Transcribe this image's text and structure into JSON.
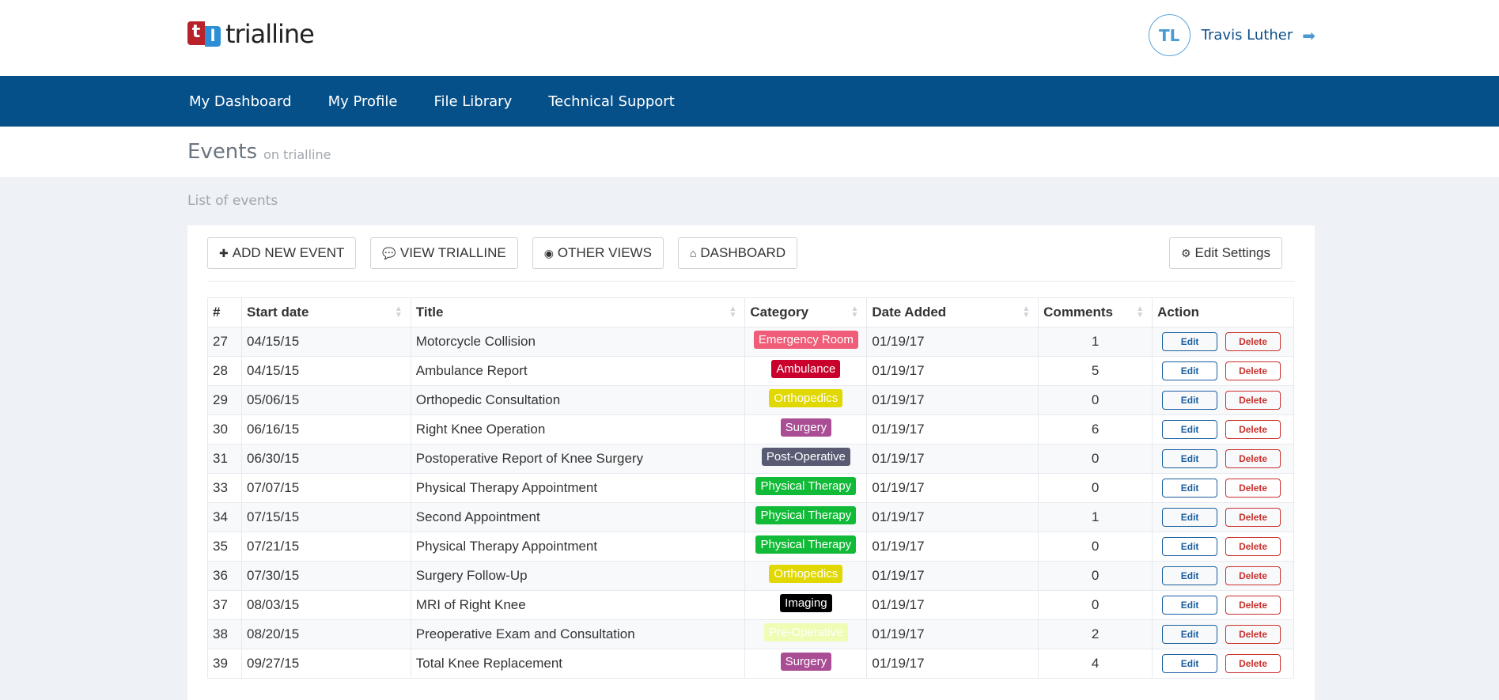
{
  "header": {
    "logo_text": "trialline",
    "logo_mark": [
      "t",
      "l"
    ],
    "user_initials": "TL",
    "user_name": "Travis Luther"
  },
  "nav": [
    "My Dashboard",
    "My Profile",
    "File Library",
    "Technical Support"
  ],
  "page": {
    "title": "Events",
    "subtitle": "on trialline",
    "breadcrumb": "List of events"
  },
  "toolbar": {
    "add": "ADD NEW EVENT",
    "view": "VIEW TRIALLINE",
    "other": "OTHER VIEWS",
    "dashboard": "DASHBOARD",
    "settings": "Edit Settings"
  },
  "table": {
    "headers": [
      "#",
      "Start date",
      "Title",
      "Category",
      "Date Added",
      "Comments",
      "Action"
    ],
    "edit_label": "Edit",
    "delete_label": "Delete",
    "rows": [
      {
        "id": "27",
        "start": "04/15/15",
        "title": "Motorcycle Collision",
        "category": "Emergency Room",
        "color": "#ef5d79",
        "date_added": "01/19/17",
        "comments": "1"
      },
      {
        "id": "28",
        "start": "04/15/15",
        "title": "Ambulance Report",
        "category": "Ambulance",
        "color": "#c8002b",
        "date_added": "01/19/17",
        "comments": "5"
      },
      {
        "id": "29",
        "start": "05/06/15",
        "title": "Orthopedic Consultation",
        "category": "Orthopedics",
        "color": "#e0d800",
        "date_added": "01/19/17",
        "comments": "0"
      },
      {
        "id": "30",
        "start": "06/16/15",
        "title": "Right Knee Operation",
        "category": "Surgery",
        "color": "#a94d94",
        "date_added": "01/19/17",
        "comments": "6"
      },
      {
        "id": "31",
        "start": "06/30/15",
        "title": "Postoperative Report of Knee Surgery",
        "category": "Post-Operative",
        "color": "#595b73",
        "date_added": "01/19/17",
        "comments": "0"
      },
      {
        "id": "33",
        "start": "07/07/15",
        "title": "Physical Therapy Appointment",
        "category": "Physical Therapy",
        "color": "#12bb37",
        "date_added": "01/19/17",
        "comments": "0"
      },
      {
        "id": "34",
        "start": "07/15/15",
        "title": "Second Appointment",
        "category": "Physical Therapy",
        "color": "#12bb37",
        "date_added": "01/19/17",
        "comments": "1"
      },
      {
        "id": "35",
        "start": "07/21/15",
        "title": "Physical Therapy Appointment",
        "category": "Physical Therapy",
        "color": "#12bb37",
        "date_added": "01/19/17",
        "comments": "0"
      },
      {
        "id": "36",
        "start": "07/30/15",
        "title": "Surgery Follow-Up",
        "category": "Orthopedics",
        "color": "#e0d800",
        "date_added": "01/19/17",
        "comments": "0"
      },
      {
        "id": "37",
        "start": "08/03/15",
        "title": "MRI of Right Knee",
        "category": "Imaging",
        "color": "#000000",
        "date_added": "01/19/17",
        "comments": "0"
      },
      {
        "id": "38",
        "start": "08/20/15",
        "title": "Preoperative Exam and Consultation",
        "category": "Pre-Operative",
        "color": "#eefcb4",
        "date_added": "01/19/17",
        "comments": "2"
      },
      {
        "id": "39",
        "start": "09/27/15",
        "title": "Total Knee Replacement",
        "category": "Surgery",
        "color": "#a94d94",
        "date_added": "01/19/17",
        "comments": "4"
      }
    ]
  }
}
